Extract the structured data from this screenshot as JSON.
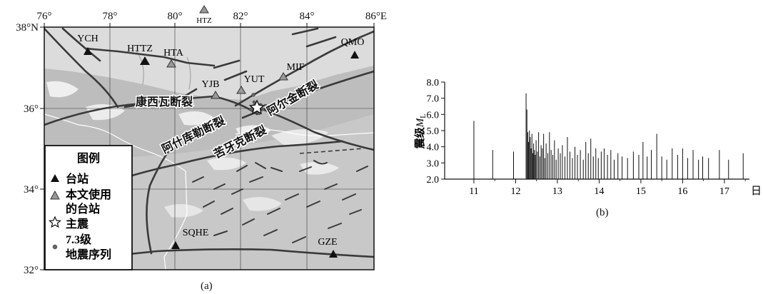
{
  "map": {
    "lon_ticks": [
      "76°",
      "78°",
      "80°",
      "82°",
      "84°",
      "86°E"
    ],
    "lat_ticks": [
      "38°N",
      "36°",
      "34°",
      "32°"
    ],
    "stations": [
      {
        "code": "YCH",
        "used": false,
        "lon": 77.2,
        "lat": 37.4
      },
      {
        "code": "HTTZ",
        "used": false,
        "lon": 79.0,
        "lat": 37.2
      },
      {
        "code": "HTA",
        "used": true,
        "lon": 80.0,
        "lat": 37.1
      },
      {
        "code": "HTZ",
        "used": true,
        "lon": 81.3,
        "lat": 38.4
      },
      {
        "code": "QMO",
        "used": false,
        "lon": 85.4,
        "lat": 37.3
      },
      {
        "code": "MIF",
        "used": true,
        "lon": 83.3,
        "lat": 36.8
      },
      {
        "code": "YUT",
        "used": true,
        "lon": 82.1,
        "lat": 36.5
      },
      {
        "code": "YJB",
        "used": true,
        "lon": 81.3,
        "lat": 36.3
      },
      {
        "code": "SQHE",
        "used": false,
        "lon": 80.0,
        "lat": 32.5
      },
      {
        "code": "GZE",
        "used": false,
        "lon": 84.8,
        "lat": 32.3
      }
    ],
    "faults": [
      "康西瓦断裂",
      "阿什库勒断裂",
      "苦牙克断裂",
      "阿尔金断裂"
    ],
    "legend": {
      "title": "图例",
      "station": "台站",
      "used_station_l1": "本文使用",
      "used_station_l2": "的台站",
      "mainshock": "主震",
      "sequence_l1": "7.3级",
      "sequence_l2": "地震序列"
    },
    "caption": "(a)"
  },
  "chart_data": {
    "type": "bar",
    "ylabel": "震级M_L",
    "xlabel": "日",
    "xlim": [
      10.3,
      17.6
    ],
    "ylim": [
      2.0,
      8.0
    ],
    "x_ticks": [
      "11",
      "12",
      "13",
      "14",
      "15",
      "16",
      "17"
    ],
    "y_ticks": [
      "2.0",
      "3.0",
      "4.0",
      "5.0",
      "6.0",
      "7.0",
      "8.0"
    ],
    "caption": "(b)",
    "events": [
      {
        "t": 11.0,
        "m": 5.6
      },
      {
        "t": 11.45,
        "m": 3.8
      },
      {
        "t": 11.95,
        "m": 3.7
      },
      {
        "t": 12.25,
        "m": 7.3
      },
      {
        "t": 12.27,
        "m": 6.3
      },
      {
        "t": 12.29,
        "m": 4.9
      },
      {
        "t": 12.31,
        "m": 4.3
      },
      {
        "t": 12.33,
        "m": 5.0
      },
      {
        "t": 12.35,
        "m": 4.6
      },
      {
        "t": 12.37,
        "m": 3.9
      },
      {
        "t": 12.39,
        "m": 4.8
      },
      {
        "t": 12.41,
        "m": 3.6
      },
      {
        "t": 12.43,
        "m": 4.2
      },
      {
        "t": 12.45,
        "m": 3.8
      },
      {
        "t": 12.47,
        "m": 3.5
      },
      {
        "t": 12.49,
        "m": 4.4
      },
      {
        "t": 12.52,
        "m": 3.7
      },
      {
        "t": 12.55,
        "m": 4.9
      },
      {
        "t": 12.58,
        "m": 3.4
      },
      {
        "t": 12.61,
        "m": 4.1
      },
      {
        "t": 12.64,
        "m": 3.9
      },
      {
        "t": 12.67,
        "m": 4.8
      },
      {
        "t": 12.7,
        "m": 3.3
      },
      {
        "t": 12.73,
        "m": 4.2
      },
      {
        "t": 12.77,
        "m": 3.6
      },
      {
        "t": 12.81,
        "m": 4.9
      },
      {
        "t": 12.85,
        "m": 3.8
      },
      {
        "t": 12.89,
        "m": 3.5
      },
      {
        "t": 12.93,
        "m": 4.4
      },
      {
        "t": 12.97,
        "m": 3.2
      },
      {
        "t": 13.02,
        "m": 3.9
      },
      {
        "t": 13.07,
        "m": 3.6
      },
      {
        "t": 13.12,
        "m": 4.1
      },
      {
        "t": 13.18,
        "m": 3.4
      },
      {
        "t": 13.24,
        "m": 4.6
      },
      {
        "t": 13.3,
        "m": 3.7
      },
      {
        "t": 13.36,
        "m": 3.3
      },
      {
        "t": 13.42,
        "m": 4.0
      },
      {
        "t": 13.48,
        "m": 3.5
      },
      {
        "t": 13.55,
        "m": 3.8
      },
      {
        "t": 13.62,
        "m": 3.2
      },
      {
        "t": 13.68,
        "m": 4.3
      },
      {
        "t": 13.74,
        "m": 3.6
      },
      {
        "t": 13.8,
        "m": 4.5
      },
      {
        "t": 13.86,
        "m": 3.4
      },
      {
        "t": 13.92,
        "m": 3.9
      },
      {
        "t": 13.98,
        "m": 3.3
      },
      {
        "t": 14.05,
        "m": 3.7
      },
      {
        "t": 14.12,
        "m": 3.9
      },
      {
        "t": 14.2,
        "m": 3.5
      },
      {
        "t": 14.28,
        "m": 3.8
      },
      {
        "t": 14.36,
        "m": 3.2
      },
      {
        "t": 14.45,
        "m": 3.6
      },
      {
        "t": 14.55,
        "m": 3.4
      },
      {
        "t": 14.68,
        "m": 3.3
      },
      {
        "t": 14.82,
        "m": 3.7
      },
      {
        "t": 14.95,
        "m": 3.5
      },
      {
        "t": 15.05,
        "m": 4.3
      },
      {
        "t": 15.15,
        "m": 3.4
      },
      {
        "t": 15.25,
        "m": 3.8
      },
      {
        "t": 15.38,
        "m": 4.8
      },
      {
        "t": 15.5,
        "m": 3.4
      },
      {
        "t": 15.62,
        "m": 3.2
      },
      {
        "t": 15.75,
        "m": 3.9
      },
      {
        "t": 15.88,
        "m": 3.5
      },
      {
        "t": 16.0,
        "m": 3.9
      },
      {
        "t": 16.12,
        "m": 3.3
      },
      {
        "t": 16.25,
        "m": 3.8
      },
      {
        "t": 16.38,
        "m": 3.2
      },
      {
        "t": 16.48,
        "m": 3.4
      },
      {
        "t": 16.62,
        "m": 3.3
      },
      {
        "t": 16.88,
        "m": 3.8
      },
      {
        "t": 17.1,
        "m": 3.2
      },
      {
        "t": 17.45,
        "m": 3.6
      }
    ]
  }
}
